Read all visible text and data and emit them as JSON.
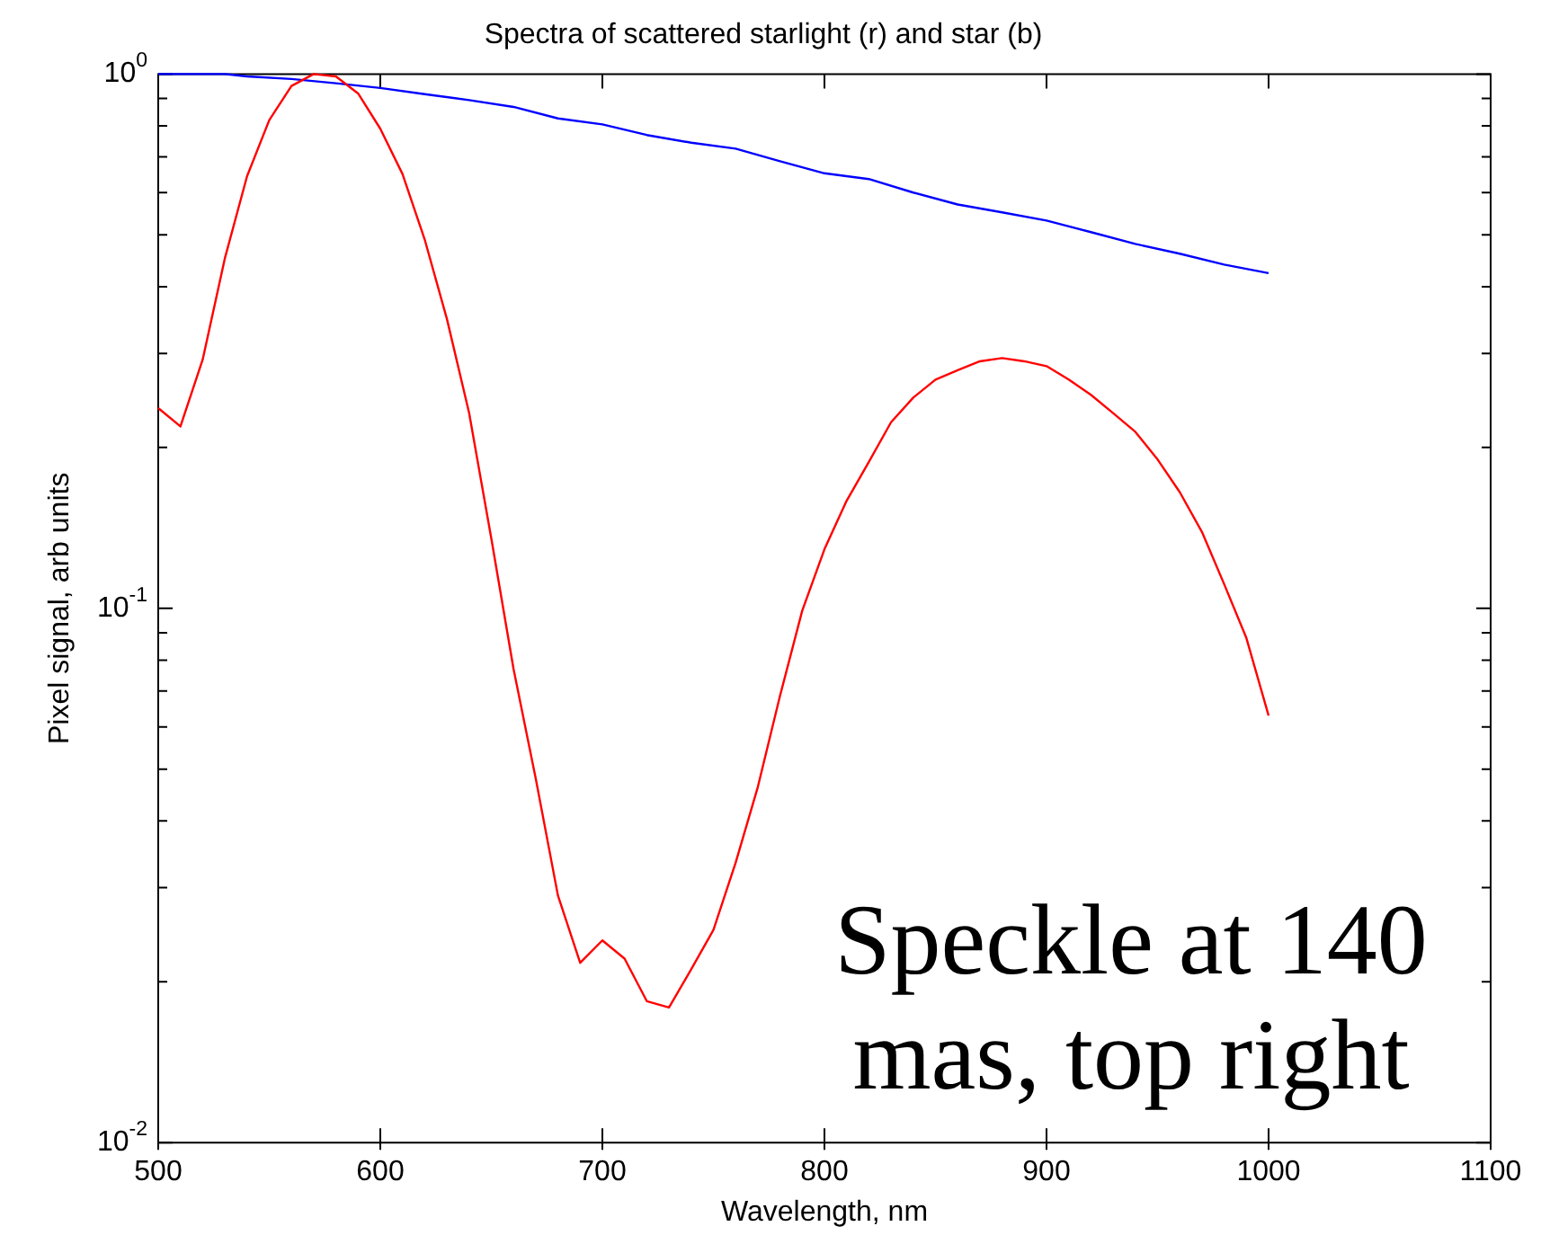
{
  "chart_data": {
    "type": "line",
    "title": "Spectra of scattered starlight (r) and star (b)",
    "xlabel": "Wavelength, nm",
    "ylabel": "Pixel signal, arb units",
    "log": "y",
    "grid": false,
    "legend": false,
    "marker": "none",
    "line_style": "solid",
    "xlim": [
      500,
      1100
    ],
    "xticks": [
      500,
      600,
      700,
      800,
      900,
      1000,
      1100
    ],
    "ylim": [
      0.01,
      1
    ],
    "yticks": [
      {
        "value": 0.01,
        "label": "10$^{-2}$"
      },
      {
        "value": 0.02,
        "label": null
      },
      {
        "value": 0.03,
        "label": null
      },
      {
        "value": 0.04,
        "label": null
      },
      {
        "value": 0.05,
        "label": null
      },
      {
        "value": 0.06,
        "label": null
      },
      {
        "value": 0.07,
        "label": null
      },
      {
        "value": 0.08,
        "label": null
      },
      {
        "value": 0.09,
        "label": null
      },
      {
        "value": 0.1,
        "label": "10$^{-1}$"
      },
      {
        "value": 0.2,
        "label": null
      },
      {
        "value": 0.3,
        "label": null
      },
      {
        "value": 0.4,
        "label": null
      },
      {
        "value": 0.5,
        "label": null
      },
      {
        "value": 0.6,
        "label": null
      },
      {
        "value": 0.7,
        "label": null
      },
      {
        "value": 0.8,
        "label": null
      },
      {
        "value": 0.9,
        "label": null
      },
      {
        "value": 1,
        "label": "10$^{0}$"
      }
    ],
    "series": [
      {
        "color": "#ff0000",
        "x": [
          500,
          510,
          520,
          530,
          540,
          550,
          560,
          570,
          580,
          590,
          600,
          610,
          620,
          630,
          640,
          650,
          660,
          670,
          680,
          690,
          700,
          710,
          720,
          730,
          740,
          750,
          760,
          770,
          780,
          790,
          800,
          810,
          820,
          830,
          840,
          850,
          860,
          870,
          880,
          890,
          900,
          910,
          920,
          930,
          940,
          950,
          960,
          970,
          980,
          990,
          1000
        ],
        "values": [
          0.237,
          0.219,
          0.292,
          0.452,
          0.644,
          0.82,
          0.95,
          1.0,
          0.99,
          0.92,
          0.79,
          0.65,
          0.49,
          0.348,
          0.232,
          0.135,
          0.077,
          0.048,
          0.029,
          0.0217,
          0.0239,
          0.0221,
          0.0184,
          0.0179,
          0.0211,
          0.025,
          0.0334,
          0.0463,
          0.0686,
          0.099,
          0.129,
          0.159,
          0.188,
          0.223,
          0.248,
          0.268,
          0.279,
          0.29,
          0.294,
          0.29,
          0.284,
          0.268,
          0.251,
          0.232,
          0.214,
          0.19,
          0.165,
          0.139,
          0.111,
          0.088,
          0.063
        ]
      },
      {
        "color": "#0000ff",
        "x": [
          500,
          520,
          530,
          540,
          560,
          580,
          600,
          620,
          640,
          660,
          680,
          700,
          720,
          740,
          760,
          780,
          800,
          820,
          840,
          860,
          880,
          900,
          920,
          940,
          960,
          980,
          1000
        ],
        "values": [
          1.0,
          1.0,
          1.0,
          0.99,
          0.979,
          0.961,
          0.942,
          0.917,
          0.894,
          0.868,
          0.826,
          0.805,
          0.769,
          0.744,
          0.725,
          0.687,
          0.652,
          0.636,
          0.6,
          0.57,
          0.551,
          0.532,
          0.506,
          0.481,
          0.461,
          0.44,
          0.424
        ]
      }
    ],
    "annotations": [
      "Speckle at 140 mas, top right"
    ]
  }
}
